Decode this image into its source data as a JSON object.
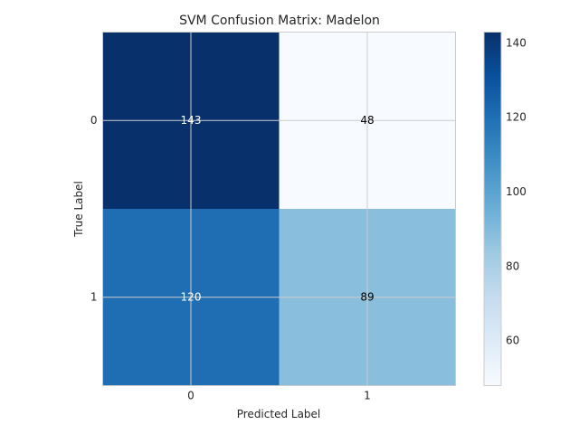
{
  "chart_data": {
    "type": "heatmap",
    "title": "SVM Confusion Matrix: Madelon",
    "xlabel": "Predicted Label",
    "ylabel": "True Label",
    "x_categories": [
      "0",
      "1"
    ],
    "y_categories": [
      "0",
      "1"
    ],
    "values": [
      [
        143,
        48
      ],
      [
        120,
        89
      ]
    ],
    "colormap": "Blues",
    "colorbar": {
      "range": [
        48,
        143
      ],
      "ticks": [
        60,
        80,
        100,
        120,
        140
      ]
    },
    "cell_text_colors": {
      "dark": "#ffffff",
      "light": "#000000"
    },
    "colors": {
      "cell_0_0": "#08306b",
      "cell_0_1": "#f7fbff",
      "cell_1_0": "#1f6eb3",
      "cell_1_1": "#89bedc"
    },
    "grid": true,
    "legend": "colorbar-right"
  }
}
